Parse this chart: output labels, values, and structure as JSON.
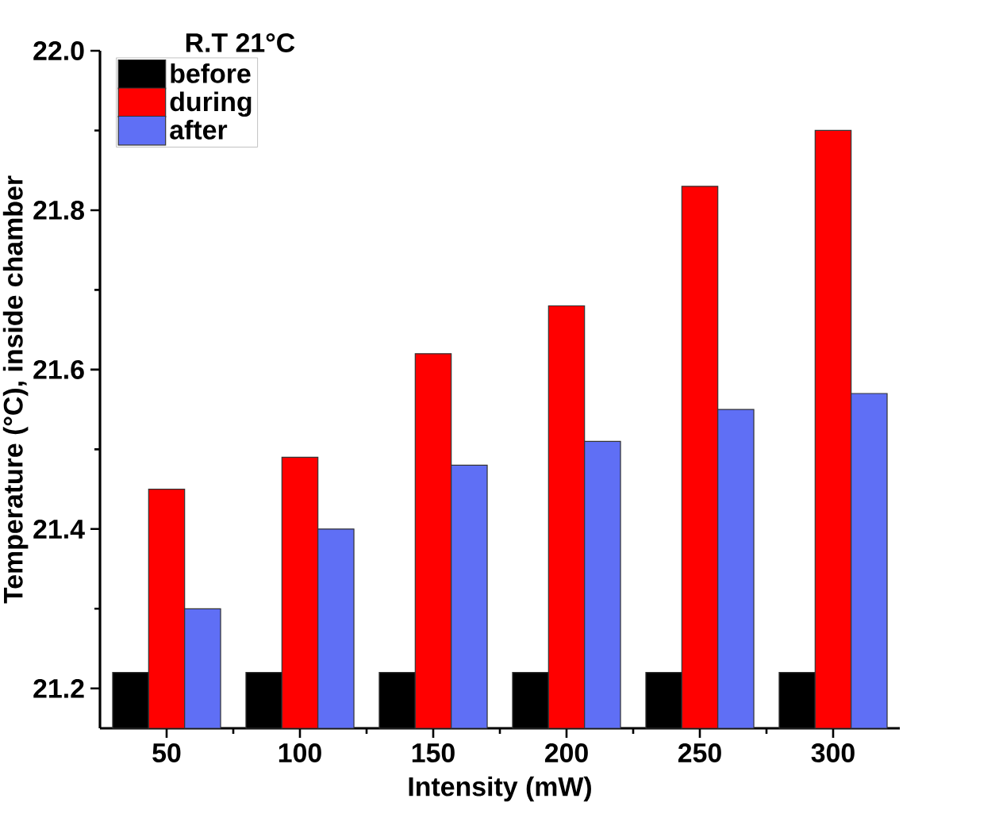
{
  "chart_data": {
    "type": "bar",
    "xlabel": "Intensity (mW)",
    "ylabel": "Temperature (°C), inside chamber",
    "legend_title": "R.T 21°C",
    "categories": [
      "50",
      "100",
      "150",
      "200",
      "250",
      "300"
    ],
    "series": [
      {
        "name": "before",
        "color": "#000000",
        "values": [
          21.22,
          21.22,
          21.22,
          21.22,
          21.22,
          21.22
        ]
      },
      {
        "name": "during",
        "color": "#ff0000",
        "values": [
          21.45,
          21.49,
          21.62,
          21.68,
          21.83,
          21.9
        ]
      },
      {
        "name": "after",
        "color": "#5f6ff5",
        "values": [
          21.3,
          21.4,
          21.48,
          21.51,
          21.55,
          21.57
        ]
      }
    ],
    "ylim": [
      21.15,
      22.0
    ],
    "yticks": [
      21.2,
      21.4,
      21.6,
      21.8,
      {
        "value": 22.0,
        "label": "22.0"
      }
    ],
    "grid": false,
    "legend": "top left"
  }
}
